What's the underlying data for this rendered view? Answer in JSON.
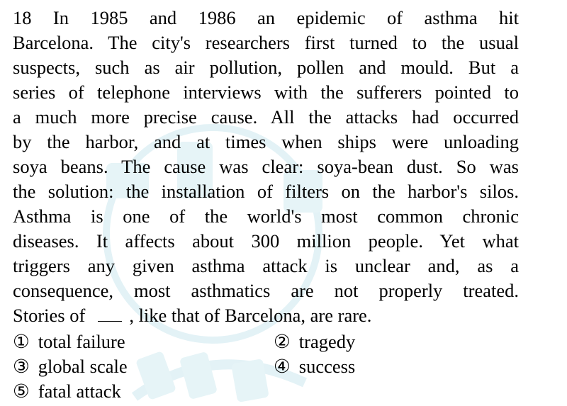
{
  "question": {
    "lines": [
      "18 In 1985 and 1986 an epidemic of asthma hit",
      "Barcelona. The city's researchers first turned to the usual",
      "suspects, such as air pollution, pollen and mould. But a",
      "series of telephone interviews with the sufferers pointed to",
      "a much more precise cause. All the attacks had occurred",
      "by the harbor, and at times when ships were unloading",
      "soya beans. The cause was clear: soya-bean dust. So was",
      "the solution: the installation of filters on the harbor's silos.",
      "Asthma is one of the world's most common chronic",
      "diseases. It affects about 300 million people. Yet what",
      "triggers any given asthma attack is unclear and, as a",
      "consequence, most asthmatics are not properly treated."
    ],
    "last_line_before_blank": "Stories of",
    "last_line_after_blank": ", like that of Barcelona, are rare."
  },
  "options": [
    {
      "number": "①",
      "text": "total failure"
    },
    {
      "number": "②",
      "text": "tragedy"
    },
    {
      "number": "③",
      "text": "global scale"
    },
    {
      "number": "④",
      "text": "success"
    },
    {
      "number": "⑤",
      "text": "fatal attack"
    }
  ],
  "colors": {
    "text": "#000000",
    "background": "#ffffff",
    "watermark": "#dff0f4"
  }
}
